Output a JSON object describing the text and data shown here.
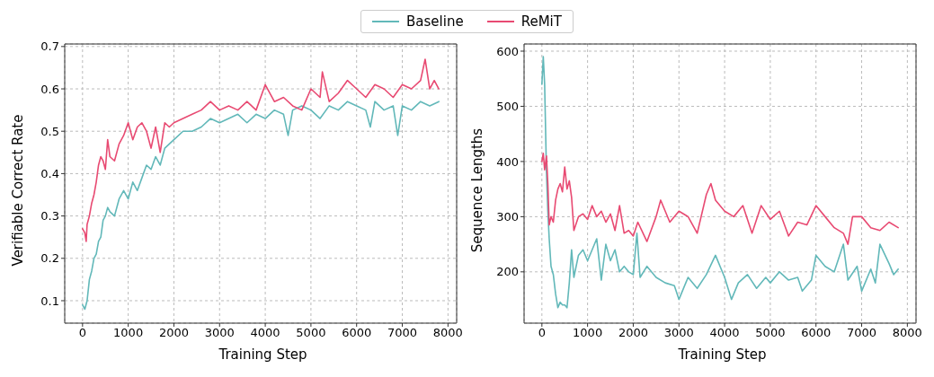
{
  "chart_data": [
    {
      "type": "line",
      "xlabel": "Training Step",
      "ylabel": "Verifiable Correct Rate",
      "xlim": [
        -390,
        8190
      ],
      "ylim": [
        0.047,
        0.706
      ],
      "xticks": [
        0,
        1000,
        2000,
        3000,
        4000,
        5000,
        6000,
        7000,
        8000
      ],
      "yticks": [
        0.1,
        0.2,
        0.3,
        0.4,
        0.5,
        0.6,
        0.7
      ],
      "grid": true,
      "legend": "top",
      "marker": "none",
      "line_style": "solid",
      "series": [
        {
          "name": "Baseline",
          "color": "#62b8b9",
          "x": [
            0,
            50,
            100,
            150,
            200,
            250,
            300,
            350,
            400,
            450,
            500,
            550,
            600,
            700,
            800,
            900,
            1000,
            1100,
            1200,
            1300,
            1400,
            1500,
            1600,
            1700,
            1800,
            1900,
            2000,
            2200,
            2400,
            2600,
            2800,
            3000,
            3200,
            3400,
            3600,
            3800,
            4000,
            4200,
            4400,
            4500,
            4600,
            4800,
            5000,
            5200,
            5400,
            5600,
            5800,
            6000,
            6200,
            6300,
            6400,
            6600,
            6800,
            6900,
            7000,
            7200,
            7400,
            7600,
            7800
          ],
          "values": [
            0.09,
            0.08,
            0.1,
            0.15,
            0.17,
            0.2,
            0.21,
            0.24,
            0.25,
            0.29,
            0.3,
            0.32,
            0.31,
            0.3,
            0.34,
            0.36,
            0.34,
            0.38,
            0.36,
            0.39,
            0.42,
            0.41,
            0.44,
            0.42,
            0.46,
            0.47,
            0.48,
            0.5,
            0.5,
            0.51,
            0.53,
            0.52,
            0.53,
            0.54,
            0.52,
            0.54,
            0.53,
            0.55,
            0.54,
            0.49,
            0.55,
            0.56,
            0.55,
            0.53,
            0.56,
            0.55,
            0.57,
            0.56,
            0.55,
            0.51,
            0.57,
            0.55,
            0.56,
            0.49,
            0.56,
            0.55,
            0.57,
            0.56,
            0.57
          ]
        },
        {
          "name": "ReMiT",
          "color": "#e84a72",
          "x": [
            0,
            50,
            80,
            100,
            150,
            200,
            250,
            300,
            350,
            400,
            450,
            500,
            550,
            600,
            700,
            800,
            900,
            1000,
            1100,
            1200,
            1300,
            1400,
            1500,
            1600,
            1700,
            1800,
            1900,
            2000,
            2200,
            2400,
            2600,
            2800,
            3000,
            3200,
            3400,
            3600,
            3800,
            4000,
            4200,
            4400,
            4600,
            4800,
            5000,
            5200,
            5250,
            5400,
            5600,
            5800,
            6000,
            6200,
            6400,
            6600,
            6800,
            7000,
            7200,
            7400,
            7500,
            7600,
            7700,
            7800
          ],
          "values": [
            0.27,
            0.26,
            0.24,
            0.28,
            0.3,
            0.33,
            0.35,
            0.38,
            0.42,
            0.44,
            0.43,
            0.41,
            0.48,
            0.44,
            0.43,
            0.47,
            0.49,
            0.52,
            0.48,
            0.51,
            0.52,
            0.5,
            0.46,
            0.51,
            0.45,
            0.52,
            0.51,
            0.52,
            0.53,
            0.54,
            0.55,
            0.57,
            0.55,
            0.56,
            0.55,
            0.57,
            0.55,
            0.61,
            0.57,
            0.58,
            0.56,
            0.55,
            0.6,
            0.58,
            0.64,
            0.57,
            0.59,
            0.62,
            0.6,
            0.58,
            0.61,
            0.6,
            0.58,
            0.61,
            0.6,
            0.62,
            0.67,
            0.6,
            0.62,
            0.6
          ]
        }
      ]
    },
    {
      "type": "line",
      "xlabel": "Training Step",
      "ylabel": "Sequence Lengths",
      "xlim": [
        -390,
        8190
      ],
      "ylim": [
        107,
        613
      ],
      "xticks": [
        0,
        1000,
        2000,
        3000,
        4000,
        5000,
        6000,
        7000,
        8000
      ],
      "yticks": [
        200,
        300,
        400,
        500,
        600
      ],
      "grid": true,
      "marker": "none",
      "line_style": "solid",
      "series": [
        {
          "color": "#62b8b9",
          "x": [
            0,
            30,
            60,
            80,
            100,
            130,
            160,
            200,
            250,
            300,
            350,
            400,
            450,
            500,
            550,
            600,
            650,
            700,
            800,
            900,
            1000,
            1100,
            1200,
            1300,
            1400,
            1500,
            1600,
            1700,
            1800,
            1900,
            2000,
            2080,
            2150,
            2300,
            2500,
            2700,
            2900,
            3000,
            3200,
            3400,
            3600,
            3800,
            4000,
            4150,
            4300,
            4500,
            4700,
            4900,
            5000,
            5200,
            5400,
            5600,
            5700,
            5900,
            6000,
            6200,
            6400,
            6600,
            6700,
            6900,
            7000,
            7200,
            7300,
            7400,
            7600,
            7700,
            7800
          ],
          "values": [
            540,
            590,
            540,
            460,
            380,
            310,
            260,
            210,
            195,
            160,
            135,
            145,
            140,
            140,
            135,
            180,
            240,
            190,
            230,
            240,
            220,
            240,
            260,
            185,
            250,
            220,
            240,
            200,
            210,
            200,
            195,
            270,
            190,
            210,
            190,
            180,
            175,
            150,
            190,
            170,
            195,
            230,
            190,
            150,
            180,
            195,
            170,
            190,
            180,
            200,
            185,
            190,
            165,
            185,
            230,
            210,
            200,
            250,
            185,
            210,
            165,
            205,
            180,
            250,
            215,
            195,
            205
          ]
        },
        {
          "color": "#e84a72",
          "x": [
            0,
            30,
            60,
            100,
            130,
            160,
            200,
            250,
            300,
            350,
            400,
            450,
            500,
            550,
            600,
            650,
            700,
            800,
            900,
            1000,
            1100,
            1200,
            1300,
            1400,
            1500,
            1600,
            1700,
            1800,
            1900,
            2000,
            2100,
            2300,
            2500,
            2600,
            2800,
            3000,
            3200,
            3400,
            3600,
            3700,
            3800,
            4000,
            4200,
            4400,
            4600,
            4800,
            5000,
            5200,
            5400,
            5600,
            5800,
            6000,
            6200,
            6400,
            6600,
            6700,
            6800,
            7000,
            7200,
            7400,
            7600,
            7800
          ],
          "values": [
            400,
            415,
            385,
            410,
            360,
            285,
            300,
            290,
            330,
            350,
            360,
            345,
            390,
            350,
            365,
            335,
            275,
            300,
            305,
            295,
            320,
            300,
            310,
            290,
            305,
            275,
            320,
            270,
            275,
            265,
            290,
            255,
            300,
            330,
            290,
            310,
            300,
            270,
            340,
            360,
            330,
            310,
            300,
            320,
            270,
            320,
            295,
            310,
            265,
            290,
            285,
            320,
            300,
            280,
            270,
            250,
            300,
            300,
            280,
            275,
            290,
            280
          ]
        }
      ]
    }
  ]
}
